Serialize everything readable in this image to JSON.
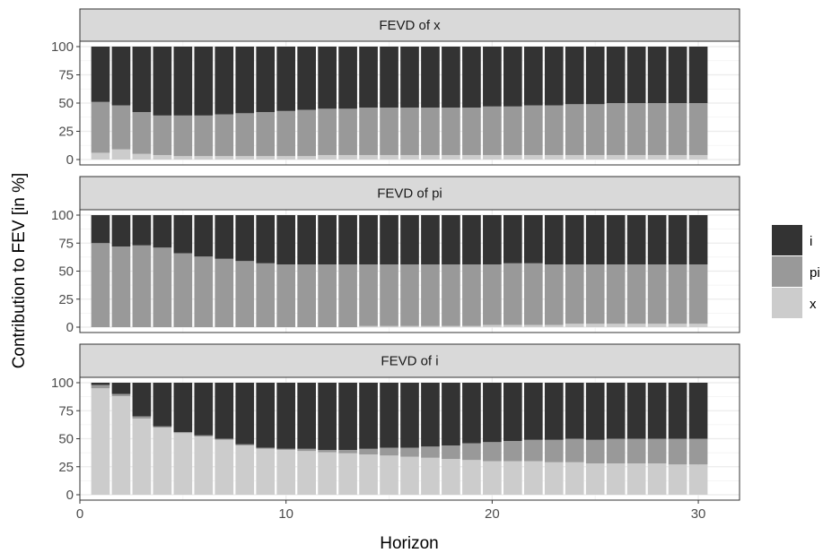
{
  "chart_data": {
    "type": "bar",
    "stacked": true,
    "xlabel": "Horizon",
    "ylabel": "Contribution to FEV [in %]",
    "xlim": [
      0,
      32
    ],
    "ylim": [
      0,
      100
    ],
    "x_ticks": [
      0,
      10,
      20,
      30
    ],
    "y_ticks": [
      0,
      25,
      50,
      75,
      100
    ],
    "grid": true,
    "legend_position": "right",
    "legend": [
      {
        "name": "i",
        "color": "#333333"
      },
      {
        "name": "pi",
        "color": "#999999"
      },
      {
        "name": "x",
        "color": "#cccccc"
      }
    ],
    "stack_order": [
      "x",
      "pi",
      "i"
    ],
    "colors": {
      "i": "#333333",
      "pi": "#999999",
      "x": "#cccccc"
    },
    "x": [
      1,
      2,
      3,
      4,
      5,
      6,
      7,
      8,
      9,
      10,
      11,
      12,
      13,
      14,
      15,
      16,
      17,
      18,
      19,
      20,
      21,
      22,
      23,
      24,
      25,
      26,
      27,
      28,
      29,
      30
    ],
    "panels": [
      {
        "title": "FEVD of x",
        "series": [
          {
            "name": "x",
            "values": [
              6,
              9,
              5,
              4,
              3,
              3,
              3,
              3,
              3,
              3,
              3,
              4,
              4,
              4,
              4,
              4,
              4,
              4,
              4,
              4,
              4,
              4,
              4,
              4,
              4,
              4,
              4,
              4,
              4,
              4
            ]
          },
          {
            "name": "pi",
            "values": [
              45,
              39,
              37,
              35,
              36,
              36,
              37,
              38,
              39,
              40,
              41,
              41,
              41,
              42,
              42,
              42,
              42,
              42,
              42,
              43,
              43,
              44,
              44,
              45,
              45,
              46,
              46,
              46,
              46,
              46
            ]
          },
          {
            "name": "i",
            "values": [
              49,
              52,
              58,
              61,
              61,
              61,
              60,
              59,
              58,
              57,
              56,
              55,
              55,
              54,
              54,
              54,
              54,
              54,
              54,
              53,
              53,
              52,
              52,
              51,
              51,
              50,
              50,
              50,
              50,
              50
            ]
          }
        ]
      },
      {
        "title": "FEVD of pi",
        "series": [
          {
            "name": "x",
            "values": [
              0,
              0,
              0,
              0,
              0,
              0,
              0,
              0,
              0,
              0,
              0,
              0,
              0,
              1,
              1,
              1,
              1,
              1,
              1,
              2,
              2,
              2,
              2,
              3,
              3,
              3,
              3,
              3,
              3,
              3
            ]
          },
          {
            "name": "pi",
            "values": [
              75,
              72,
              73,
              71,
              66,
              63,
              61,
              59,
              57,
              56,
              56,
              56,
              56,
              55,
              55,
              55,
              55,
              55,
              55,
              54,
              55,
              55,
              54,
              53,
              53,
              53,
              53,
              53,
              53,
              53
            ]
          },
          {
            "name": "i",
            "values": [
              25,
              28,
              27,
              29,
              34,
              37,
              39,
              41,
              43,
              44,
              44,
              44,
              44,
              44,
              44,
              44,
              44,
              44,
              44,
              44,
              43,
              43,
              44,
              44,
              44,
              44,
              44,
              44,
              44,
              44
            ]
          }
        ]
      },
      {
        "title": "FEVD of i",
        "series": [
          {
            "name": "x",
            "values": [
              95,
              88,
              68,
              60,
              55,
              52,
              49,
              44,
              41,
              40,
              39,
              38,
              37,
              36,
              35,
              34,
              33,
              32,
              31,
              30,
              30,
              30,
              29,
              29,
              28,
              28,
              28,
              28,
              27,
              27
            ]
          },
          {
            "name": "pi",
            "values": [
              3,
              2,
              2,
              1,
              1,
              1,
              1,
              1,
              1,
              1,
              2,
              2,
              3,
              5,
              7,
              8,
              10,
              12,
              15,
              17,
              18,
              19,
              20,
              21,
              21,
              22,
              22,
              22,
              23,
              23
            ]
          },
          {
            "name": "i",
            "values": [
              2,
              10,
              30,
              39,
              44,
              47,
              50,
              55,
              58,
              59,
              59,
              60,
              60,
              59,
              58,
              58,
              57,
              56,
              54,
              53,
              52,
              51,
              51,
              50,
              51,
              50,
              50,
              50,
              50,
              50
            ]
          }
        ]
      }
    ]
  }
}
